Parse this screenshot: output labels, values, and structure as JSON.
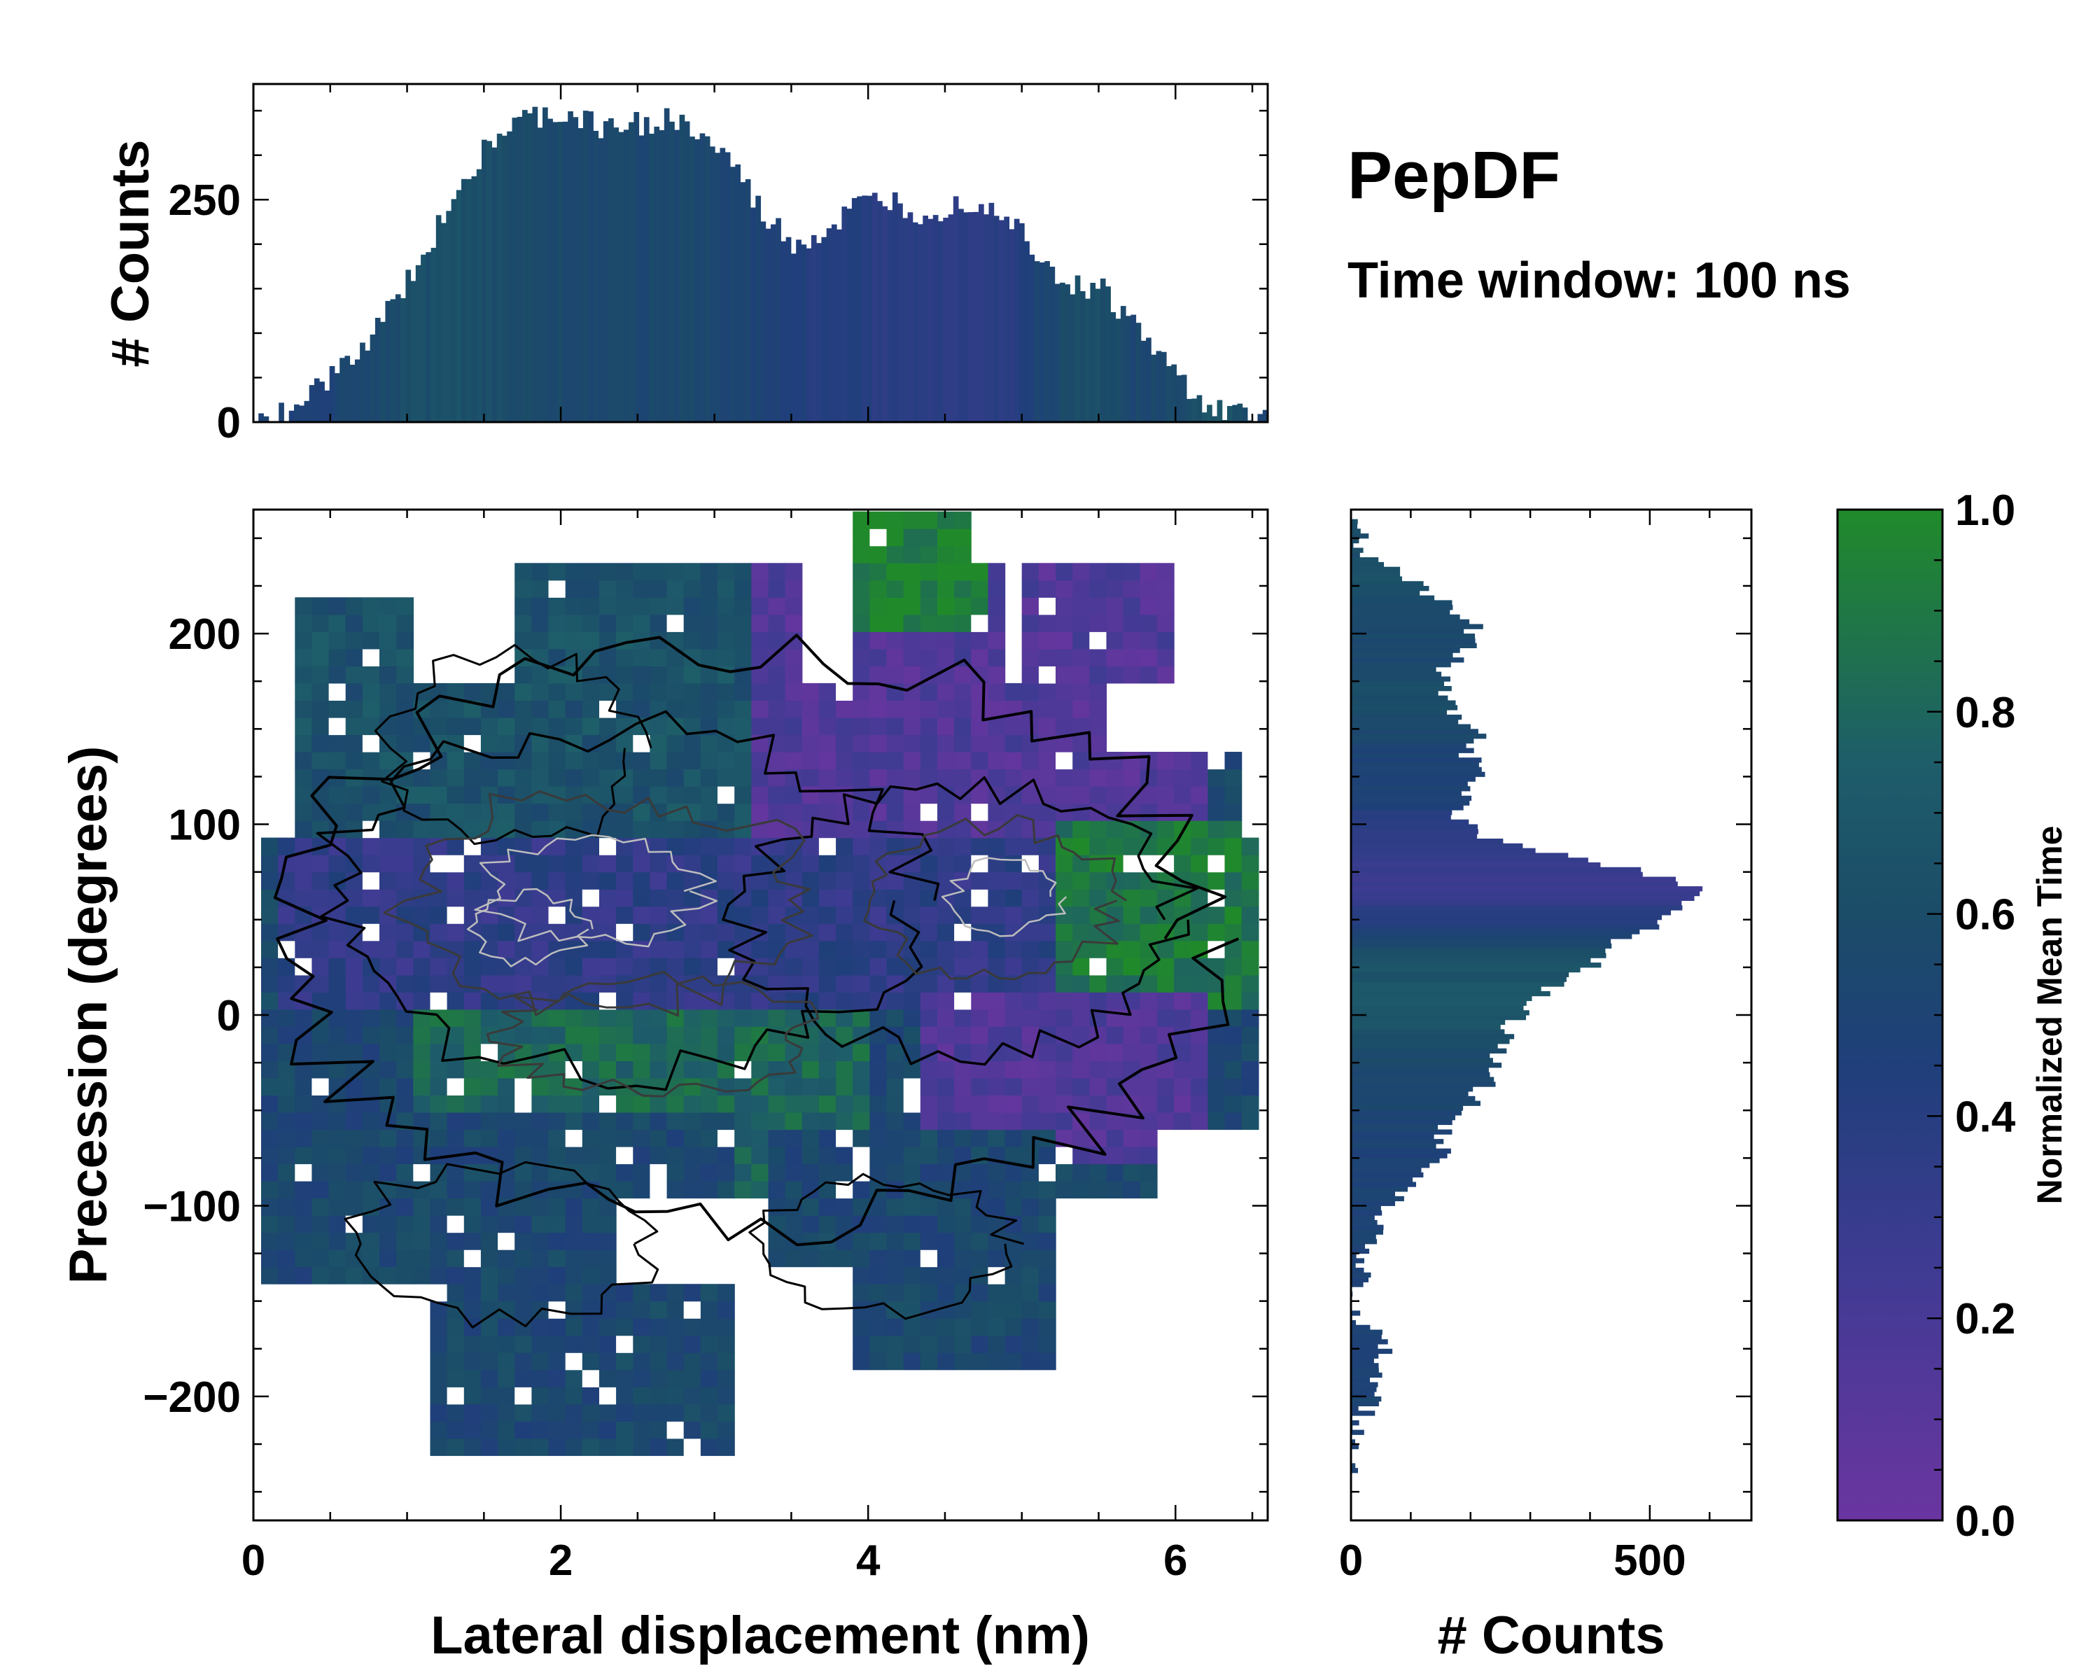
{
  "title": "PepDF",
  "subtitle": "Time window: 100 ns",
  "colors": {
    "low": "#6a35a0",
    "mid": "#1f3f7a",
    "teal": "#1e5d6a",
    "high": "#208a2a",
    "contour_outer": "#000000",
    "contour_inner_dark": "#3a3a3a",
    "contour_inner_light": "#bdbdbd"
  },
  "chart_data": [
    {
      "id": "joint-2d-histogram",
      "type": "heatmap",
      "xlabel": "Lateral displacement (nm)",
      "ylabel": "Precession (degrees)",
      "xlim": [
        0,
        6.6
      ],
      "ylim": [
        -265,
        265
      ],
      "xticks": [
        0,
        2,
        4,
        6
      ],
      "xtick_labels": [
        "0",
        "2",
        "4",
        "6"
      ],
      "yticks": [
        -200,
        -100,
        0,
        100,
        200
      ],
      "ytick_labels": [
        "−200",
        "−100",
        "0",
        "100",
        "200"
      ],
      "color_value": "Normalized Mean Time",
      "regions": [
        {
          "name": "upper-left-teal",
          "x": [
            0.3,
            3.8
          ],
          "y": [
            90,
            240
          ],
          "value": 0.65
        },
        {
          "name": "upper-right-purple",
          "x": [
            3.2,
            6.2
          ],
          "y": [
            80,
            240
          ],
          "value": 0.15
        },
        {
          "name": "top-right-green",
          "x": [
            3.9,
            4.8
          ],
          "y": [
            200,
            260
          ],
          "value": 0.95
        },
        {
          "name": "central-band",
          "x": [
            0.2,
            6.5
          ],
          "y": [
            0,
            90
          ],
          "value": 0.35
        },
        {
          "name": "right-green",
          "x": [
            5.2,
            6.5
          ],
          "y": [
            0,
            100
          ],
          "value": 0.9
        },
        {
          "name": "lower-central-green",
          "x": [
            1.0,
            4.0
          ],
          "y": [
            -100,
            0
          ],
          "value": 0.8
        },
        {
          "name": "lower-right-purple",
          "x": [
            4.3,
            6.2
          ],
          "y": [
            -80,
            10
          ],
          "value": 0.15
        },
        {
          "name": "lower-left-blue",
          "x": [
            0.1,
            3.1
          ],
          "y": [
            -235,
            -50
          ],
          "value": 0.55
        },
        {
          "name": "lower-middle-blue",
          "x": [
            3.4,
            5.2
          ],
          "y": [
            -180,
            -60
          ],
          "value": 0.55
        }
      ]
    },
    {
      "id": "x-marginal-histogram",
      "type": "bar",
      "xlabel": "",
      "ylabel": "# Counts",
      "xlim": [
        0,
        6.6
      ],
      "ylim": [
        0,
        380
      ],
      "yticks": [
        0,
        250
      ],
      "ytick_labels": [
        "0",
        "250"
      ],
      "bin_centers": [
        0.1,
        0.3,
        0.5,
        0.7,
        0.9,
        1.1,
        1.3,
        1.5,
        1.7,
        1.9,
        2.1,
        2.3,
        2.5,
        2.7,
        2.9,
        3.1,
        3.3,
        3.5,
        3.7,
        3.9,
        4.1,
        4.3,
        4.5,
        4.7,
        4.9,
        5.1,
        5.3,
        5.5,
        5.7,
        5.9,
        6.1,
        6.3,
        6.5
      ],
      "values": [
        3,
        20,
        50,
        90,
        130,
        190,
        260,
        310,
        335,
        345,
        340,
        330,
        335,
        340,
        320,
        290,
        230,
        200,
        210,
        240,
        250,
        235,
        240,
        250,
        230,
        190,
        150,
        150,
        110,
        70,
        30,
        10,
        2
      ],
      "bar_mean_time": [
        0.5,
        0.45,
        0.5,
        0.55,
        0.6,
        0.62,
        0.65,
        0.62,
        0.6,
        0.58,
        0.56,
        0.55,
        0.55,
        0.57,
        0.55,
        0.52,
        0.5,
        0.45,
        0.4,
        0.4,
        0.38,
        0.37,
        0.38,
        0.35,
        0.4,
        0.5,
        0.6,
        0.62,
        0.55,
        0.55,
        0.6,
        0.7,
        0.5
      ]
    },
    {
      "id": "y-marginal-histogram",
      "type": "bar",
      "orientation": "horizontal",
      "xlabel": "# Counts",
      "ylabel": "",
      "xlim": [
        0,
        670
      ],
      "ylim": [
        -265,
        265
      ],
      "xticks": [
        0,
        500
      ],
      "xtick_labels": [
        "0",
        "500"
      ],
      "bin_centers": [
        255,
        245,
        235,
        225,
        215,
        205,
        195,
        185,
        175,
        165,
        155,
        145,
        135,
        125,
        115,
        105,
        95,
        85,
        75,
        65,
        55,
        45,
        35,
        25,
        15,
        5,
        -5,
        -15,
        -25,
        -35,
        -45,
        -55,
        -65,
        -75,
        -85,
        -95,
        -105,
        -115,
        -125,
        -135,
        -145,
        -155,
        -165,
        -175,
        -185,
        -195,
        -205,
        -215,
        -225,
        -235
      ],
      "values": [
        5,
        15,
        50,
        110,
        160,
        200,
        210,
        170,
        150,
        170,
        180,
        220,
        200,
        230,
        190,
        180,
        200,
        300,
        480,
        580,
        560,
        500,
        430,
        400,
        350,
        300,
        270,
        260,
        240,
        230,
        210,
        170,
        150,
        150,
        120,
        80,
        60,
        40,
        20,
        15,
        10,
        10,
        30,
        50,
        60,
        40,
        30,
        15,
        5,
        0
      ],
      "bar_mean_time": [
        0.6,
        0.6,
        0.62,
        0.65,
        0.6,
        0.58,
        0.56,
        0.55,
        0.6,
        0.6,
        0.58,
        0.55,
        0.5,
        0.5,
        0.5,
        0.42,
        0.38,
        0.33,
        0.3,
        0.28,
        0.35,
        0.45,
        0.58,
        0.65,
        0.68,
        0.7,
        0.66,
        0.62,
        0.58,
        0.55,
        0.53,
        0.52,
        0.5,
        0.48,
        0.5,
        0.5,
        0.48,
        0.5,
        0.5,
        0.5,
        0.5,
        0.5,
        0.5,
        0.5,
        0.5,
        0.5,
        0.5,
        0.5,
        0.5,
        0.5
      ]
    },
    {
      "id": "colorbar",
      "type": "colorbar",
      "label": "Normalized Mean Time",
      "range": [
        0.0,
        1.0
      ],
      "ticks": [
        0.0,
        0.2,
        0.4,
        0.6,
        0.8,
        1.0
      ],
      "tick_labels": [
        "0.0",
        "0.2",
        "0.4",
        "0.6",
        "0.8",
        "1.0"
      ]
    }
  ]
}
